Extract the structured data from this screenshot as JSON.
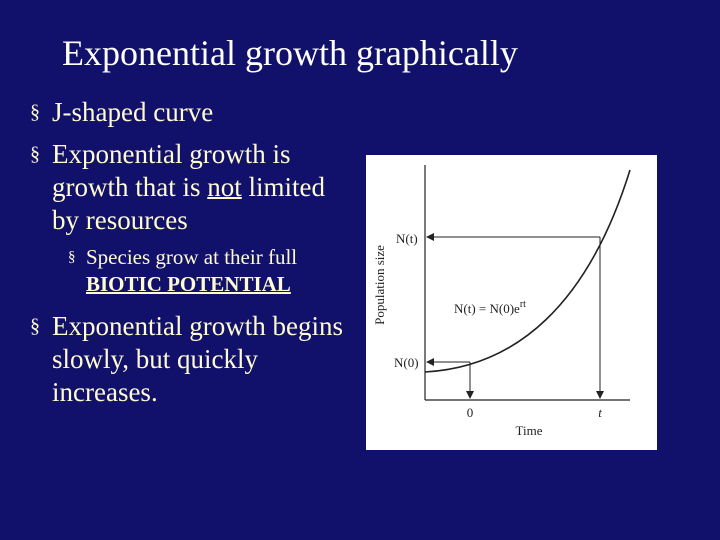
{
  "title": "Exponential growth graphically",
  "bullets": [
    {
      "parts": [
        {
          "text": "J-shaped curve"
        }
      ]
    },
    {
      "parts": [
        {
          "text": "Exponential growth is growth that is "
        },
        {
          "text": "not",
          "underline": true
        },
        {
          "text": " limited by resources"
        }
      ],
      "sub": [
        {
          "parts": [
            {
              "text": "Species grow at their full "
            },
            {
              "text": "BIOTIC POTENTIAL",
              "underline": true,
              "bold": true
            }
          ]
        }
      ]
    },
    {
      "parts": [
        {
          "text": "Exponential growth begins slowly, but quickly increases."
        }
      ]
    }
  ],
  "bullet_marker": "§",
  "figure": {
    "y_axis_label": "Population size",
    "x_axis_label": "Time",
    "nt_label": "N(t)",
    "n0_label": "N(0)",
    "equation": {
      "base": "N(t) = N(0)e",
      "exponent": "rt"
    },
    "x_zero": "0",
    "x_t": "t"
  }
}
